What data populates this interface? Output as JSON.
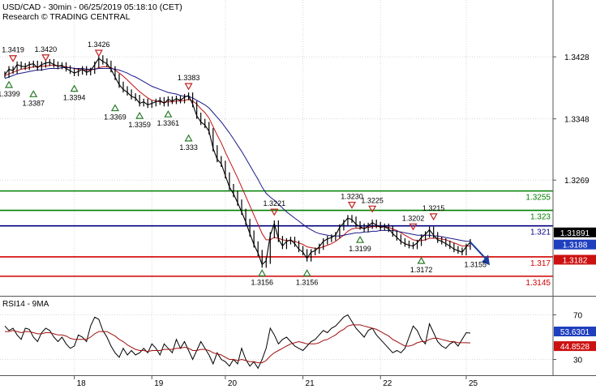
{
  "header": {
    "title": "USD/CAD - 30min - 06/25/2019 05:18:10 (CET)",
    "watermark": "Research © TRADING CENTRAL"
  },
  "colors": {
    "price": "#000000",
    "ma_fast": "#c01010",
    "ma_slow": "#1a1a8a",
    "resistance": "#008000",
    "pivot": "#000080",
    "support": "#d00000",
    "rsi": "#000000",
    "rsi_ma": "#a01010",
    "grid": "#d8d8d8",
    "up_marker": "#2a7a2a",
    "down_marker": "#c02020",
    "arrow": "#1a3ea0"
  },
  "chart_data": [
    {
      "type": "line",
      "panel": "price",
      "x_labels": [
        "18",
        "19",
        "20",
        "21",
        "22",
        "25"
      ],
      "x_label_index": [
        17,
        36,
        54,
        73,
        92,
        113
      ],
      "ylim": [
        1.3125,
        1.3495
      ],
      "y_ticks": [
        1.3428,
        1.3348,
        1.3269
      ],
      "grid": true,
      "series": [
        {
          "role": "price",
          "values": [
            1.3405,
            1.3412,
            1.341,
            1.3418,
            1.3416,
            1.3415,
            1.3418,
            1.3419,
            1.3414,
            1.3418,
            1.342,
            1.3421,
            1.3418,
            1.3416,
            1.3417,
            1.3413,
            1.341,
            1.3407,
            1.3409,
            1.3412,
            1.3408,
            1.341,
            1.3418,
            1.3426,
            1.3422,
            1.3419,
            1.3412,
            1.3402,
            1.3392,
            1.3386,
            1.3382,
            1.3377,
            1.3375,
            1.3368,
            1.337,
            1.3366,
            1.3368,
            1.337,
            1.3372,
            1.3368,
            1.3373,
            1.3371,
            1.3374,
            1.3372,
            1.3376,
            1.3378,
            1.3367,
            1.3352,
            1.3344,
            1.334,
            1.3332,
            1.331,
            1.3296,
            1.329,
            1.3275,
            1.326,
            1.3251,
            1.324,
            1.3228,
            1.3215,
            1.32,
            1.3186,
            1.3175,
            1.316,
            1.3165,
            1.3198,
            1.3213,
            1.3193,
            1.3184,
            1.319,
            1.3192,
            1.3187,
            1.318,
            1.3176,
            1.3168,
            1.3176,
            1.3178,
            1.3183,
            1.319,
            1.3193,
            1.3195,
            1.3198,
            1.3208,
            1.3214,
            1.322,
            1.3218,
            1.3212,
            1.3209,
            1.3206,
            1.321,
            1.3214,
            1.3211,
            1.3208,
            1.3209,
            1.3206,
            1.32,
            1.3195,
            1.319,
            1.3187,
            1.3185,
            1.3184,
            1.3188,
            1.3195,
            1.3199,
            1.3205,
            1.3198,
            1.3192,
            1.319,
            1.3187,
            1.3184,
            1.318,
            1.3178,
            1.3176,
            1.3183,
            1.3189
          ]
        },
        {
          "role": "ma_fast",
          "values": [
            1.3404,
            1.3406,
            1.3408,
            1.341,
            1.3412,
            1.3413,
            1.3414,
            1.3415,
            1.3415,
            1.3416,
            1.3416,
            1.3417,
            1.3417,
            1.3416,
            1.3416,
            1.3415,
            1.3414,
            1.3413,
            1.3412,
            1.3411,
            1.3411,
            1.3411,
            1.3412,
            1.3414,
            1.3415,
            1.3415,
            1.3414,
            1.3411,
            1.3407,
            1.3403,
            1.3398,
            1.3393,
            1.3388,
            1.3383,
            1.3379,
            1.3375,
            1.3372,
            1.3371,
            1.337,
            1.3369,
            1.337,
            1.337,
            1.3371,
            1.3371,
            1.3372,
            1.3373,
            1.3371,
            1.3367,
            1.3361,
            1.3356,
            1.3349,
            1.3338,
            1.3327,
            1.3317,
            1.3305,
            1.3294,
            1.3283,
            1.3272,
            1.326,
            1.3248,
            1.3236,
            1.3224,
            1.3212,
            1.32,
            1.3192,
            1.3192,
            1.3195,
            1.3194,
            1.3192,
            1.3191,
            1.3191,
            1.319,
            1.3188,
            1.3186,
            1.3183,
            1.3182,
            1.3181,
            1.3181,
            1.3183,
            1.3185,
            1.3187,
            1.319,
            1.3194,
            1.3198,
            1.3203,
            1.3206,
            1.3207,
            1.3207,
            1.3207,
            1.3208,
            1.3209,
            1.3209,
            1.3209,
            1.3209,
            1.3208,
            1.3206,
            1.3204,
            1.3201,
            1.3198,
            1.3195,
            1.3192,
            1.3191,
            1.3191,
            1.3192,
            1.3194,
            1.3194,
            1.3194,
            1.3193,
            1.3192,
            1.319,
            1.3188,
            1.3186,
            1.3184,
            1.3184,
            1.3184
          ]
        },
        {
          "role": "ma_slow",
          "values": [
            1.34,
            1.3402,
            1.3404,
            1.3406,
            1.3407,
            1.3408,
            1.3409,
            1.341,
            1.3411,
            1.3411,
            1.3412,
            1.3413,
            1.3413,
            1.3413,
            1.3414,
            1.3414,
            1.3414,
            1.3413,
            1.3413,
            1.3413,
            1.3412,
            1.3412,
            1.3412,
            1.3413,
            1.3413,
            1.3413,
            1.3413,
            1.3412,
            1.3411,
            1.3409,
            1.3407,
            1.3404,
            1.3402,
            1.3399,
            1.3396,
            1.3393,
            1.339,
            1.3388,
            1.3386,
            1.3384,
            1.3382,
            1.3381,
            1.338,
            1.3378,
            1.3377,
            1.3377,
            1.3375,
            1.3372,
            1.3369,
            1.3366,
            1.3362,
            1.3356,
            1.335,
            1.3344,
            1.3337,
            1.333,
            1.3322,
            1.3314,
            1.3306,
            1.3297,
            1.3288,
            1.3279,
            1.327,
            1.326,
            1.3252,
            1.3247,
            1.3243,
            1.3238,
            1.3233,
            1.3228,
            1.3224,
            1.322,
            1.3216,
            1.3212,
            1.3208,
            1.3205,
            1.3202,
            1.32,
            1.3199,
            1.3198,
            1.3197,
            1.3197,
            1.3197,
            1.3198,
            1.3199,
            1.32,
            1.3201,
            1.3201,
            1.3202,
            1.3202,
            1.3203,
            1.3203,
            1.3204,
            1.3204,
            1.3204,
            1.3204,
            1.3203,
            1.3202,
            1.3201,
            1.32,
            1.3199,
            1.3198,
            1.3198,
            1.3198,
            1.3198,
            1.3197,
            1.3197,
            1.3196,
            1.3195,
            1.3194,
            1.3193,
            1.3192,
            1.3191,
            1.319,
            1.319
          ]
        }
      ],
      "levels": [
        {
          "value": 1.3255,
          "label": "1.3255",
          "role": "resistance"
        },
        {
          "value": 1.323,
          "label": "1.323",
          "role": "resistance"
        },
        {
          "value": 1.321,
          "label": "1.321",
          "role": "pivot"
        },
        {
          "value": 1.317,
          "label": "1.317",
          "role": "support"
        },
        {
          "value": 1.3145,
          "label": "1.3145",
          "role": "support"
        }
      ],
      "last_price_tags": [
        {
          "value": 1.3189,
          "label": "1.31891",
          "bg": "#000000",
          "fg": "#ffffff"
        },
        {
          "value": 1.3188,
          "label": "1.3188",
          "bg": "#1f3fbf",
          "fg": "#ffffff"
        },
        {
          "value": 1.3182,
          "label": "1.3182",
          "bg": "#cc1111",
          "fg": "#ffffff"
        }
      ],
      "annotations": [
        {
          "label": "1.3419",
          "index": 2,
          "value": 1.3419,
          "kind": "high"
        },
        {
          "label": "1.3420",
          "index": 10,
          "value": 1.342,
          "kind": "high"
        },
        {
          "label": "1.3426",
          "index": 23,
          "value": 1.3426,
          "kind": "high"
        },
        {
          "label": "1.3399",
          "index": 1,
          "value": 1.3399,
          "kind": "low"
        },
        {
          "label": "1.3387",
          "index": 7,
          "value": 1.3387,
          "kind": "low"
        },
        {
          "label": "1.3394",
          "index": 17,
          "value": 1.3394,
          "kind": "low"
        },
        {
          "label": "1.3369",
          "index": 27,
          "value": 1.3369,
          "kind": "low"
        },
        {
          "label": "1.3359",
          "index": 33,
          "value": 1.3359,
          "kind": "low"
        },
        {
          "label": "1.3361",
          "index": 40,
          "value": 1.3361,
          "kind": "low"
        },
        {
          "label": "1.3383",
          "index": 45,
          "value": 1.3383,
          "kind": "high"
        },
        {
          "label": "1.333",
          "index": 45,
          "value": 1.333,
          "kind": "low"
        },
        {
          "label": "1.3221",
          "index": 66,
          "value": 1.3221,
          "kind": "high"
        },
        {
          "label": "1.3156",
          "index": 63,
          "value": 1.3156,
          "kind": "low"
        },
        {
          "label": "1.3156",
          "index": 74,
          "value": 1.3156,
          "kind": "low"
        },
        {
          "label": "1.3230",
          "index": 85,
          "value": 1.323,
          "kind": "high"
        },
        {
          "label": "1.3225",
          "index": 90,
          "value": 1.3225,
          "kind": "high"
        },
        {
          "label": "1.3199",
          "index": 87,
          "value": 1.3199,
          "kind": "low"
        },
        {
          "label": "1.3202",
          "index": 100,
          "value": 1.3202,
          "kind": "high"
        },
        {
          "label": "1.3215",
          "index": 105,
          "value": 1.3215,
          "kind": "high"
        },
        {
          "label": "1.3172",
          "index": 102,
          "value": 1.3172,
          "kind": "low"
        },
        {
          "label": "1.3155",
          "index": 113,
          "value": 1.3155,
          "kind": "target"
        }
      ]
    },
    {
      "type": "line",
      "panel": "rsi",
      "title": "RSI14 - 9MA",
      "ylim": [
        18,
        82
      ],
      "y_ticks": [
        70,
        30
      ],
      "series": [
        {
          "role": "rsi",
          "values": [
            60,
            56,
            58,
            52,
            48,
            58,
            57,
            50,
            46,
            54,
            58,
            56,
            50,
            46,
            50,
            44,
            40,
            42,
            52,
            50,
            46,
            60,
            68,
            66,
            56,
            50,
            42,
            36,
            32,
            40,
            34,
            38,
            34,
            36,
            40,
            36,
            44,
            40,
            34,
            44,
            40,
            36,
            48,
            40,
            46,
            38,
            30,
            38,
            46,
            40,
            34,
            26,
            36,
            30,
            28,
            24,
            30,
            26,
            40,
            30,
            24,
            28,
            22,
            30,
            40,
            58,
            52,
            44,
            48,
            50,
            46,
            42,
            40,
            38,
            42,
            46,
            48,
            52,
            56,
            54,
            58,
            60,
            64,
            68,
            70,
            64,
            58,
            54,
            50,
            56,
            58,
            52,
            48,
            44,
            40,
            36,
            38,
            36,
            40,
            50,
            60,
            56,
            48,
            44,
            62,
            54,
            46,
            42,
            40,
            44,
            46,
            42,
            48,
            54,
            53.63
          ]
        },
        {
          "role": "rsi_ma",
          "values": [
            55,
            55,
            56,
            55,
            54,
            55,
            55,
            54,
            53,
            53,
            54,
            54,
            53,
            52,
            52,
            51,
            49,
            48,
            48,
            48,
            48,
            50,
            53,
            55,
            55,
            55,
            53,
            51,
            48,
            46,
            43,
            41,
            39,
            38,
            38,
            37,
            38,
            38,
            38,
            39,
            39,
            39,
            40,
            40,
            41,
            40,
            38,
            38,
            39,
            39,
            38,
            36,
            35,
            34,
            32,
            30,
            30,
            29,
            30,
            29,
            28,
            28,
            27,
            27,
            29,
            33,
            36,
            38,
            40,
            42,
            44,
            45,
            46,
            45,
            44,
            44,
            44,
            45,
            47,
            48,
            50,
            52,
            55,
            57,
            60,
            61,
            61,
            61,
            60,
            59,
            58,
            57,
            55,
            53,
            51,
            48,
            46,
            44,
            42,
            42,
            43,
            45,
            46,
            46,
            48,
            49,
            49,
            48,
            47,
            46,
            46,
            45,
            45,
            45,
            44.85
          ]
        }
      ],
      "last_value_tags": [
        {
          "value": 53.63,
          "label": "53.6301",
          "bg": "#1f3fbf",
          "fg": "#ffffff"
        },
        {
          "value": 44.85,
          "label": "44.8528",
          "bg": "#cc1111",
          "fg": "#ffffff"
        }
      ]
    }
  ]
}
